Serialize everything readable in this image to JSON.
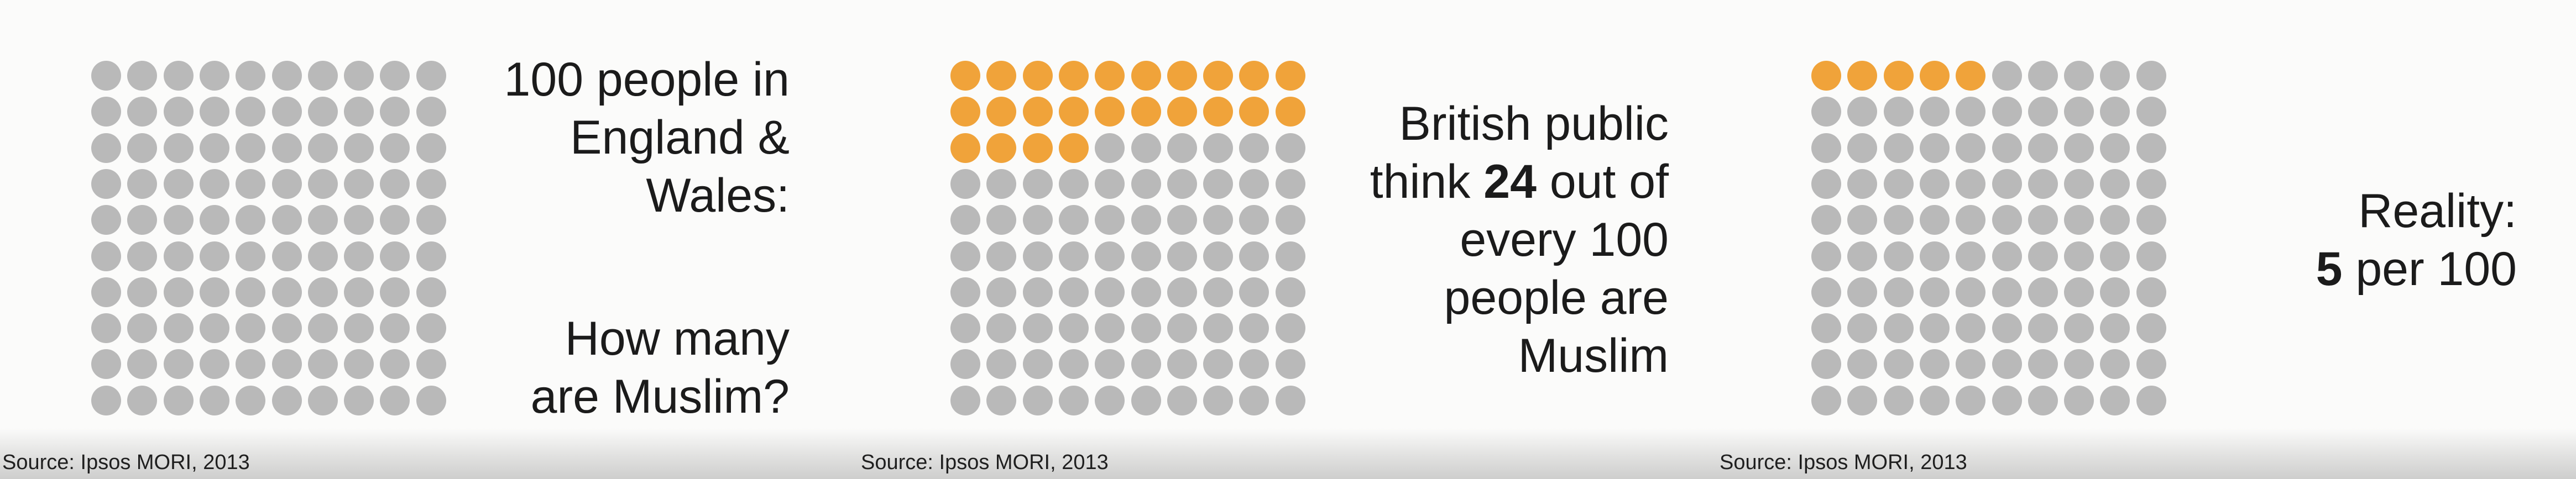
{
  "chart_data": [
    {
      "type": "waffle",
      "grid": {
        "rows": 10,
        "cols": 10
      },
      "total": 100,
      "highlighted": 0,
      "colors": {
        "base": "#b9b9b9",
        "highlight": "#f0a33a"
      }
    },
    {
      "type": "waffle",
      "grid": {
        "rows": 10,
        "cols": 10
      },
      "total": 100,
      "highlighted": 24,
      "colors": {
        "base": "#b9b9b9",
        "highlight": "#f0a33a"
      }
    },
    {
      "type": "waffle",
      "grid": {
        "rows": 10,
        "cols": 10
      },
      "total": 100,
      "highlighted": 5,
      "colors": {
        "base": "#b9b9b9",
        "highlight": "#f0a33a"
      }
    }
  ],
  "panels": [
    {
      "text_lines": [
        "100 people in",
        "England &",
        "Wales:",
        "",
        "How many",
        "are Muslim?"
      ],
      "source": "Source: Ipsos MORI, 2013"
    },
    {
      "line1": "British public",
      "line2_pre": "think ",
      "line2_num": "24",
      "line2_post": " out of",
      "line3": "every 100",
      "line4": "people are",
      "line5": "Muslim",
      "source": "Source: Ipsos MORI, 2013"
    },
    {
      "line1": "Reality:",
      "line2_num": "5",
      "line2_post": " per 100",
      "source": "Source: Ipsos MORI, 2013"
    }
  ]
}
